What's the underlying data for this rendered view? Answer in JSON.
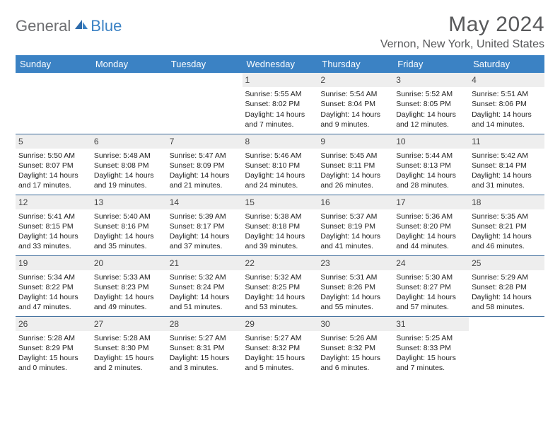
{
  "brand": {
    "general": "General",
    "blue": "Blue"
  },
  "title": "May 2024",
  "location": "Vernon, New York, United States",
  "colors": {
    "header_bg": "#3b82c4",
    "header_text": "#ffffff",
    "row_border": "#3b6a9a",
    "daynum_bg": "#eeeeee",
    "title_text": "#58595b",
    "logo_gray": "#6d6e71",
    "logo_blue": "#3b82c4"
  },
  "day_headers": [
    "Sunday",
    "Monday",
    "Tuesday",
    "Wednesday",
    "Thursday",
    "Friday",
    "Saturday"
  ],
  "weeks": [
    [
      {
        "day": "",
        "lines": []
      },
      {
        "day": "",
        "lines": []
      },
      {
        "day": "",
        "lines": []
      },
      {
        "day": "1",
        "lines": [
          "Sunrise: 5:55 AM",
          "Sunset: 8:02 PM",
          "Daylight: 14 hours and 7 minutes."
        ]
      },
      {
        "day": "2",
        "lines": [
          "Sunrise: 5:54 AM",
          "Sunset: 8:04 PM",
          "Daylight: 14 hours and 9 minutes."
        ]
      },
      {
        "day": "3",
        "lines": [
          "Sunrise: 5:52 AM",
          "Sunset: 8:05 PM",
          "Daylight: 14 hours and 12 minutes."
        ]
      },
      {
        "day": "4",
        "lines": [
          "Sunrise: 5:51 AM",
          "Sunset: 8:06 PM",
          "Daylight: 14 hours and 14 minutes."
        ]
      }
    ],
    [
      {
        "day": "5",
        "lines": [
          "Sunrise: 5:50 AM",
          "Sunset: 8:07 PM",
          "Daylight: 14 hours and 17 minutes."
        ]
      },
      {
        "day": "6",
        "lines": [
          "Sunrise: 5:48 AM",
          "Sunset: 8:08 PM",
          "Daylight: 14 hours and 19 minutes."
        ]
      },
      {
        "day": "7",
        "lines": [
          "Sunrise: 5:47 AM",
          "Sunset: 8:09 PM",
          "Daylight: 14 hours and 21 minutes."
        ]
      },
      {
        "day": "8",
        "lines": [
          "Sunrise: 5:46 AM",
          "Sunset: 8:10 PM",
          "Daylight: 14 hours and 24 minutes."
        ]
      },
      {
        "day": "9",
        "lines": [
          "Sunrise: 5:45 AM",
          "Sunset: 8:11 PM",
          "Daylight: 14 hours and 26 minutes."
        ]
      },
      {
        "day": "10",
        "lines": [
          "Sunrise: 5:44 AM",
          "Sunset: 8:13 PM",
          "Daylight: 14 hours and 28 minutes."
        ]
      },
      {
        "day": "11",
        "lines": [
          "Sunrise: 5:42 AM",
          "Sunset: 8:14 PM",
          "Daylight: 14 hours and 31 minutes."
        ]
      }
    ],
    [
      {
        "day": "12",
        "lines": [
          "Sunrise: 5:41 AM",
          "Sunset: 8:15 PM",
          "Daylight: 14 hours and 33 minutes."
        ]
      },
      {
        "day": "13",
        "lines": [
          "Sunrise: 5:40 AM",
          "Sunset: 8:16 PM",
          "Daylight: 14 hours and 35 minutes."
        ]
      },
      {
        "day": "14",
        "lines": [
          "Sunrise: 5:39 AM",
          "Sunset: 8:17 PM",
          "Daylight: 14 hours and 37 minutes."
        ]
      },
      {
        "day": "15",
        "lines": [
          "Sunrise: 5:38 AM",
          "Sunset: 8:18 PM",
          "Daylight: 14 hours and 39 minutes."
        ]
      },
      {
        "day": "16",
        "lines": [
          "Sunrise: 5:37 AM",
          "Sunset: 8:19 PM",
          "Daylight: 14 hours and 41 minutes."
        ]
      },
      {
        "day": "17",
        "lines": [
          "Sunrise: 5:36 AM",
          "Sunset: 8:20 PM",
          "Daylight: 14 hours and 44 minutes."
        ]
      },
      {
        "day": "18",
        "lines": [
          "Sunrise: 5:35 AM",
          "Sunset: 8:21 PM",
          "Daylight: 14 hours and 46 minutes."
        ]
      }
    ],
    [
      {
        "day": "19",
        "lines": [
          "Sunrise: 5:34 AM",
          "Sunset: 8:22 PM",
          "Daylight: 14 hours and 47 minutes."
        ]
      },
      {
        "day": "20",
        "lines": [
          "Sunrise: 5:33 AM",
          "Sunset: 8:23 PM",
          "Daylight: 14 hours and 49 minutes."
        ]
      },
      {
        "day": "21",
        "lines": [
          "Sunrise: 5:32 AM",
          "Sunset: 8:24 PM",
          "Daylight: 14 hours and 51 minutes."
        ]
      },
      {
        "day": "22",
        "lines": [
          "Sunrise: 5:32 AM",
          "Sunset: 8:25 PM",
          "Daylight: 14 hours and 53 minutes."
        ]
      },
      {
        "day": "23",
        "lines": [
          "Sunrise: 5:31 AM",
          "Sunset: 8:26 PM",
          "Daylight: 14 hours and 55 minutes."
        ]
      },
      {
        "day": "24",
        "lines": [
          "Sunrise: 5:30 AM",
          "Sunset: 8:27 PM",
          "Daylight: 14 hours and 57 minutes."
        ]
      },
      {
        "day": "25",
        "lines": [
          "Sunrise: 5:29 AM",
          "Sunset: 8:28 PM",
          "Daylight: 14 hours and 58 minutes."
        ]
      }
    ],
    [
      {
        "day": "26",
        "lines": [
          "Sunrise: 5:28 AM",
          "Sunset: 8:29 PM",
          "Daylight: 15 hours and 0 minutes."
        ]
      },
      {
        "day": "27",
        "lines": [
          "Sunrise: 5:28 AM",
          "Sunset: 8:30 PM",
          "Daylight: 15 hours and 2 minutes."
        ]
      },
      {
        "day": "28",
        "lines": [
          "Sunrise: 5:27 AM",
          "Sunset: 8:31 PM",
          "Daylight: 15 hours and 3 minutes."
        ]
      },
      {
        "day": "29",
        "lines": [
          "Sunrise: 5:27 AM",
          "Sunset: 8:32 PM",
          "Daylight: 15 hours and 5 minutes."
        ]
      },
      {
        "day": "30",
        "lines": [
          "Sunrise: 5:26 AM",
          "Sunset: 8:32 PM",
          "Daylight: 15 hours and 6 minutes."
        ]
      },
      {
        "day": "31",
        "lines": [
          "Sunrise: 5:25 AM",
          "Sunset: 8:33 PM",
          "Daylight: 15 hours and 7 minutes."
        ]
      },
      {
        "day": "",
        "lines": []
      }
    ]
  ]
}
